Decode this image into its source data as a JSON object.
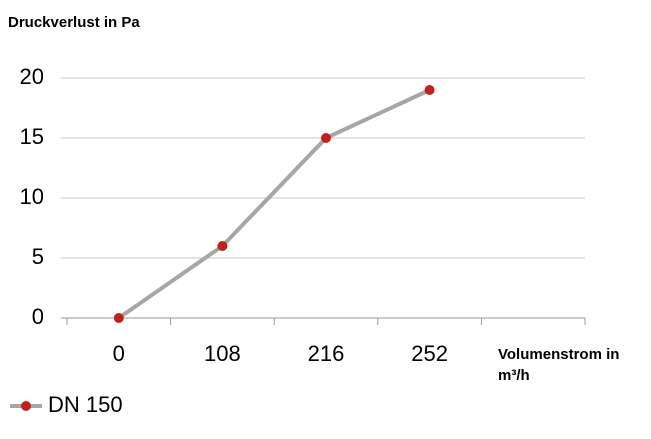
{
  "chart_data": {
    "type": "line",
    "title": "Druckverlust in Pa",
    "x_label": "Volumenstrom in m³/h",
    "categories": [
      "0",
      "108",
      "216",
      "252",
      null
    ],
    "series": [
      {
        "name": "DN 150",
        "color": "#a6a6a6",
        "marker_color": "#c0211b",
        "values": [
          0,
          6,
          15,
          19,
          null
        ]
      }
    ],
    "ylim": [
      0,
      20
    ],
    "yticks": [
      0,
      5,
      10,
      15,
      20
    ],
    "grid": true,
    "legend": "bottom-left"
  }
}
